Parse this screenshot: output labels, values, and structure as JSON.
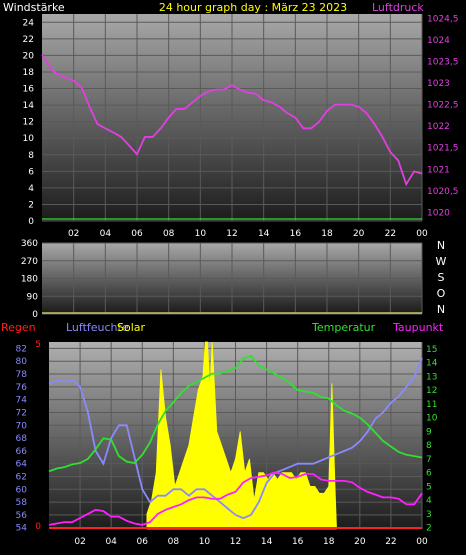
{
  "colors": {
    "background": "#000000",
    "wind_label": "#ffffff",
    "title": "#ffff00",
    "pressure": "#e040e0",
    "regen": "#ff2020",
    "luftfeuchte": "#8a8aff",
    "solar": "#ffff00",
    "temperatur": "#30e030",
    "taupunkt": "#ff20ff",
    "axis_text": "#ffffff"
  },
  "chart_data": [
    {
      "id": "pressure",
      "type": "line",
      "title": "24 hour graph day : März 23 2023",
      "left_label": "Windstärke",
      "right_label": "Luftdruck",
      "x_ticks": [
        "02",
        "04",
        "06",
        "08",
        "10",
        "12",
        "14",
        "16",
        "18",
        "20",
        "22",
        "00"
      ],
      "left_ticks": [
        "0",
        "2",
        "4",
        "6",
        "8",
        "10",
        "12",
        "14",
        "16",
        "18",
        "20",
        "22",
        "24"
      ],
      "right_ticks": [
        "1020",
        "1020,5",
        "1021",
        "1021,5",
        "1022",
        "1022,5",
        "1023",
        "1023,5",
        "1024",
        "1024,5"
      ],
      "xlim": [
        0,
        24
      ],
      "ylim_left": [
        0,
        25
      ],
      "ylim_right": [
        1019.8,
        1024.6
      ],
      "series": [
        {
          "name": "Luftdruck",
          "axis": "right",
          "x": [
            0,
            0.3,
            0.6,
            1,
            1.5,
            2,
            2.5,
            3,
            3.5,
            4,
            4.5,
            5,
            5.5,
            6,
            6.5,
            7,
            7.5,
            8,
            8.5,
            9,
            9.5,
            10,
            10.5,
            11,
            11.5,
            12,
            12.5,
            13,
            13.5,
            14,
            14.5,
            15,
            15.5,
            16,
            16.5,
            17,
            17.5,
            18,
            18.5,
            19,
            19.5,
            20,
            20.5,
            21,
            21.5,
            22,
            22.5,
            23,
            23.5,
            24
          ],
          "values": [
            1023.65,
            1023.5,
            1023.3,
            1023.2,
            1023.12,
            1023.05,
            1022.9,
            1022.45,
            1022.05,
            1021.95,
            1021.85,
            1021.75,
            1021.55,
            1021.35,
            1021.75,
            1021.75,
            1021.95,
            1022.2,
            1022.4,
            1022.4,
            1022.55,
            1022.7,
            1022.8,
            1022.85,
            1022.85,
            1022.95,
            1022.85,
            1022.78,
            1022.75,
            1022.6,
            1022.55,
            1022.45,
            1022.3,
            1022.2,
            1021.95,
            1021.95,
            1022.1,
            1022.35,
            1022.5,
            1022.5,
            1022.5,
            1022.45,
            1022.3,
            1022.05,
            1021.75,
            1021.4,
            1021.2,
            1020.65,
            1020.95,
            1020.9
          ]
        }
      ]
    },
    {
      "id": "wind_direction",
      "type": "line",
      "left_ticks": [
        "0",
        "90",
        "180",
        "270",
        "360"
      ],
      "right_ticks": [
        "N",
        "W",
        "S",
        "O",
        "N"
      ],
      "xlim": [
        0,
        24
      ],
      "ylim": [
        0,
        360
      ],
      "series": []
    },
    {
      "id": "humidity_temperature",
      "type": "line",
      "legend": [
        "Regen",
        "Luftfeuchte",
        "Solar",
        "Temperatur",
        "Taupunkt"
      ],
      "x_ticks": [
        "02",
        "04",
        "06",
        "08",
        "10",
        "12",
        "14",
        "16",
        "18",
        "20",
        "22",
        "00"
      ],
      "left_ticks": [
        "54",
        "56",
        "58",
        "60",
        "62",
        "64",
        "66",
        "68",
        "70",
        "72",
        "74",
        "76",
        "78",
        "80",
        "82"
      ],
      "right_ticks": [
        "2",
        "3",
        "4",
        "5",
        "6",
        "7",
        "8",
        "9",
        "10",
        "11",
        "12",
        "13",
        "14",
        "15"
      ],
      "regen_ticks": [
        "0",
        "5"
      ],
      "xlim": [
        0,
        24
      ],
      "ylim_left": [
        53.8,
        83
      ],
      "ylim_right": [
        1.9,
        15.5
      ],
      "series": [
        {
          "name": "Luftfeuchte",
          "axis": "left",
          "x": [
            0,
            0.5,
            1,
            1.5,
            2,
            2.5,
            3,
            3.5,
            4,
            4.5,
            5,
            5.5,
            6,
            6.5,
            7,
            7.5,
            8,
            8.5,
            9,
            9.5,
            10,
            10.5,
            11,
            11.5,
            12,
            12.5,
            13,
            13.5,
            14,
            14.5,
            15,
            15.5,
            16,
            16.5,
            17,
            17.5,
            18,
            18.5,
            19,
            19.5,
            20,
            20.5,
            21,
            21.5,
            22,
            22.5,
            23,
            23.5,
            24
          ],
          "values": [
            76.5,
            77,
            76.8,
            77,
            76,
            72,
            66,
            64,
            68,
            70,
            70,
            65,
            60,
            58,
            59,
            59,
            60,
            60,
            59,
            60,
            60,
            59,
            58,
            57,
            56,
            55.5,
            56,
            58,
            61,
            62.5,
            63,
            63.5,
            64,
            64,
            64,
            64.5,
            65,
            65.5,
            66,
            66.5,
            67.5,
            69,
            71,
            72,
            73.5,
            74.5,
            76,
            77.5,
            80.5
          ]
        },
        {
          "name": "Temperatur",
          "axis": "right",
          "x": [
            0,
            0.5,
            1,
            1.5,
            2,
            2.5,
            3,
            3.5,
            4,
            4.5,
            5,
            5.5,
            6,
            6.5,
            7,
            7.5,
            8,
            8.5,
            9,
            9.5,
            10,
            10.5,
            11,
            11.5,
            12,
            12.5,
            13,
            13.5,
            14,
            14.5,
            15,
            15.5,
            16,
            16.5,
            17,
            17.5,
            18,
            18.5,
            19,
            19.5,
            20,
            20.5,
            21,
            21.5,
            22,
            22.5,
            23,
            23.5,
            24
          ],
          "values": [
            6.1,
            6.3,
            6.4,
            6.6,
            6.7,
            7,
            7.7,
            8.5,
            8.4,
            7.2,
            6.8,
            6.7,
            7.3,
            8.2,
            9.5,
            10.5,
            11.1,
            11.8,
            12.3,
            12.6,
            12.9,
            13.2,
            13.2,
            13.4,
            13.6,
            14.3,
            14.5,
            13.8,
            13.5,
            13.2,
            12.9,
            12.5,
            12,
            11.9,
            11.8,
            11.5,
            11.4,
            10.9,
            10.5,
            10.3,
            10,
            9.5,
            8.9,
            8.3,
            7.9,
            7.5,
            7.3,
            7.2,
            7.1
          ]
        },
        {
          "name": "Taupunkt",
          "axis": "right",
          "x": [
            0,
            0.5,
            1,
            1.5,
            2,
            2.5,
            3,
            3.5,
            4,
            4.5,
            5,
            5.5,
            6,
            6.5,
            7,
            7.5,
            8,
            8.5,
            9,
            9.5,
            10,
            10.5,
            11,
            11.5,
            12,
            12.5,
            13,
            13.5,
            14,
            14.5,
            15,
            15.5,
            16,
            16.5,
            17,
            17.5,
            18,
            18.5,
            19,
            19.5,
            20,
            20.5,
            21,
            21.5,
            22,
            22.5,
            23,
            23.5,
            24
          ],
          "values": [
            2.2,
            2.3,
            2.4,
            2.4,
            2.7,
            3,
            3.3,
            3.2,
            2.8,
            2.8,
            2.5,
            2.3,
            2.2,
            2.4,
            3,
            3.3,
            3.5,
            3.7,
            4,
            4.2,
            4.2,
            4.1,
            4.1,
            4.4,
            4.6,
            5.3,
            5.6,
            5.7,
            5.8,
            6,
            5.9,
            5.6,
            5.7,
            5.9,
            5.9,
            5.5,
            5.4,
            5.4,
            5.4,
            5.3,
            4.9,
            4.6,
            4.4,
            4.2,
            4.2,
            4.1,
            3.7,
            3.7,
            4.5
          ]
        },
        {
          "name": "Solar",
          "type": "area",
          "axis": "right",
          "x": [
            6.3,
            6.6,
            6.9,
            7.2,
            7.5,
            7.8,
            8.1,
            8.4,
            8.7,
            9,
            9.3,
            9.6,
            9.9,
            10.05,
            10.2,
            10.35,
            10.5,
            10.8,
            11.1,
            11.4,
            11.7,
            12,
            12.3,
            12.6,
            12.9,
            13.2,
            13.5,
            13.8,
            14.1,
            14.4,
            14.7,
            15,
            15.3,
            15.6,
            15.9,
            16.2,
            16.5,
            16.8,
            17.1,
            17.4,
            17.7,
            18,
            18.2,
            18.4,
            18.5
          ],
          "values": [
            3,
            4,
            6,
            13.5,
            10,
            8,
            5,
            6,
            7,
            8,
            10,
            12,
            13,
            15.5,
            15.5,
            12,
            15.5,
            9,
            8,
            7,
            6,
            7,
            9,
            6,
            7,
            4,
            6,
            6,
            5.5,
            6,
            5.5,
            6,
            6,
            6,
            5.5,
            6,
            6,
            5,
            5,
            4.5,
            4.5,
            5,
            12.5,
            5,
            2
          ]
        },
        {
          "name": "Regen",
          "axis": "regen",
          "x": [
            0,
            24
          ],
          "values": [
            0,
            0
          ]
        }
      ]
    }
  ]
}
